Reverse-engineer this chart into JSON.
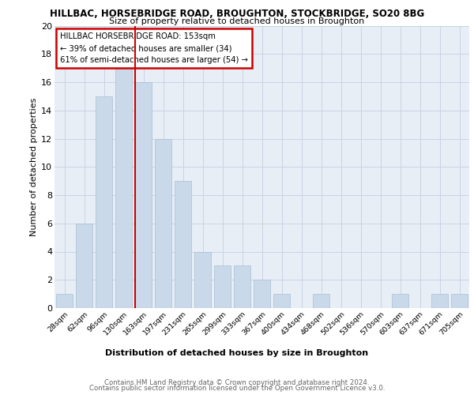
{
  "title1": "HILLBAC, HORSEBRIDGE ROAD, BROUGHTON, STOCKBRIDGE, SO20 8BG",
  "title2": "Size of property relative to detached houses in Broughton",
  "xlabel": "Distribution of detached houses by size in Broughton",
  "ylabel": "Number of detached properties",
  "categories": [
    "28sqm",
    "62sqm",
    "96sqm",
    "130sqm",
    "163sqm",
    "197sqm",
    "231sqm",
    "265sqm",
    "299sqm",
    "333sqm",
    "367sqm",
    "400sqm",
    "434sqm",
    "468sqm",
    "502sqm",
    "536sqm",
    "570sqm",
    "603sqm",
    "637sqm",
    "671sqm",
    "705sqm"
  ],
  "values": [
    1,
    6,
    15,
    17,
    16,
    12,
    9,
    4,
    3,
    3,
    2,
    1,
    0,
    1,
    0,
    0,
    0,
    1,
    0,
    1,
    1
  ],
  "bar_color": "#c9d9ea",
  "bar_edge_color": "#a8bfd4",
  "reference_line_color": "#cc0000",
  "annotation_title": "HILLBAC HORSEBRIDGE ROAD: 153sqm",
  "annotation_line1": "← 39% of detached houses are smaller (34)",
  "annotation_line2": "61% of semi-detached houses are larger (54) →",
  "annotation_box_edge_color": "#cc0000",
  "ylim": [
    0,
    20
  ],
  "yticks": [
    0,
    2,
    4,
    6,
    8,
    10,
    12,
    14,
    16,
    18,
    20
  ],
  "grid_color": "#c8d4e4",
  "background_color": "#e8eef6",
  "footer1": "Contains HM Land Registry data © Crown copyright and database right 2024.",
  "footer2": "Contains public sector information licensed under the Open Government Licence v3.0.",
  "ref_line_x": 3.57
}
